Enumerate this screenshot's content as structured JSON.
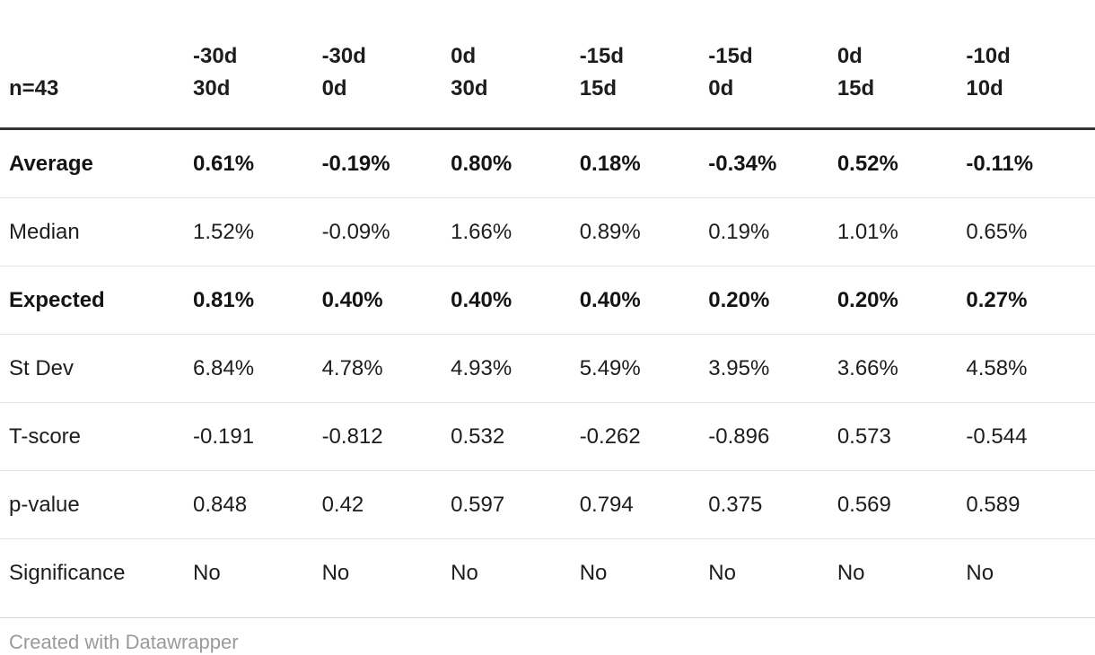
{
  "chart_data": {
    "type": "table",
    "title": "",
    "corner_label": "n=43",
    "columns": [
      {
        "top": "-30d",
        "bottom": "30d"
      },
      {
        "top": "-30d",
        "bottom": "0d"
      },
      {
        "top": "0d",
        "bottom": "30d"
      },
      {
        "top": "-15d",
        "bottom": "15d"
      },
      {
        "top": "-15d",
        "bottom": "0d"
      },
      {
        "top": "0d",
        "bottom": "15d"
      },
      {
        "top": "-10d",
        "bottom": "10d"
      }
    ],
    "rows": [
      {
        "label": "Average",
        "bold": true,
        "values": [
          "0.61%",
          "-0.19%",
          "0.80%",
          "0.18%",
          "-0.34%",
          "0.52%",
          "-0.11%"
        ]
      },
      {
        "label": "Median",
        "bold": false,
        "values": [
          "1.52%",
          "-0.09%",
          "1.66%",
          "0.89%",
          "0.19%",
          "1.01%",
          "0.65%"
        ]
      },
      {
        "label": "Expected",
        "bold": true,
        "values": [
          "0.81%",
          "0.40%",
          "0.40%",
          "0.40%",
          "0.20%",
          "0.20%",
          "0.27%"
        ]
      },
      {
        "label": "St Dev",
        "bold": false,
        "values": [
          "6.84%",
          "4.78%",
          "4.93%",
          "5.49%",
          "3.95%",
          "3.66%",
          "4.58%"
        ]
      },
      {
        "label": "T-score",
        "bold": false,
        "values": [
          "-0.191",
          "-0.812",
          "0.532",
          "-0.262",
          "-0.896",
          "0.573",
          "-0.544"
        ]
      },
      {
        "label": "p-value",
        "bold": false,
        "values": [
          "0.848",
          "0.42",
          "0.597",
          "0.794",
          "0.375",
          "0.569",
          "0.589"
        ]
      },
      {
        "label": "Significance",
        "bold": false,
        "values": [
          "No",
          "No",
          "No",
          "No",
          "No",
          "No",
          "No"
        ]
      }
    ],
    "layout": {
      "grid": "horizontal-row-separators",
      "header_border_color": "#333333",
      "row_separator_color": "#e3e3e3",
      "bold_rows": [
        "Average",
        "Expected"
      ]
    }
  },
  "footer": {
    "credit": "Created with Datawrapper"
  }
}
